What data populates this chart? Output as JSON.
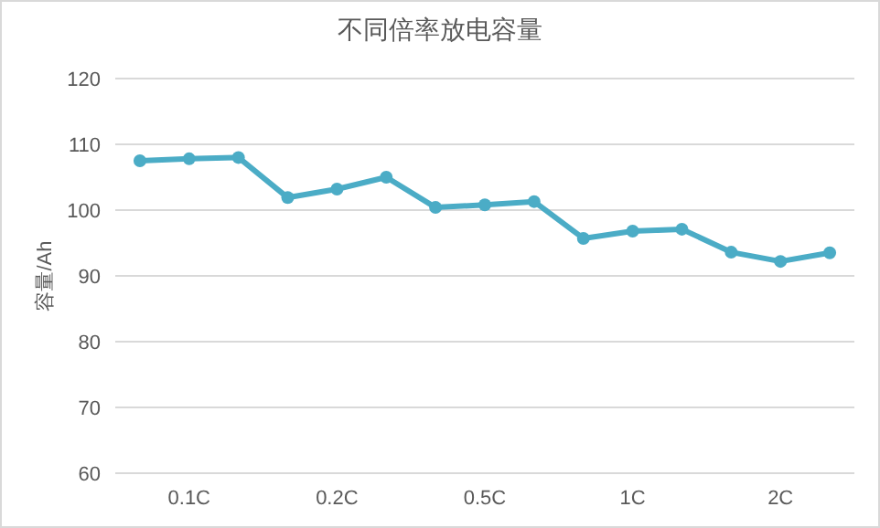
{
  "chart_data": {
    "type": "line",
    "title": "不同倍率放电容量",
    "ylabel": "容量/Ah",
    "categories": [
      null,
      "0.1C",
      null,
      null,
      "0.2C",
      null,
      null,
      "0.5C",
      null,
      null,
      "1C",
      null,
      null,
      "2C",
      null
    ],
    "series": [
      {
        "color": "#4bacc6",
        "values": [
          107.5,
          107.8,
          108.0,
          101.9,
          103.2,
          105.0,
          100.4,
          100.8,
          101.3,
          95.7,
          96.8,
          97.1,
          93.6,
          92.2,
          93.5
        ]
      }
    ],
    "ylim": [
      60,
      120
    ],
    "yticks": [
      60,
      70,
      80,
      90,
      100,
      110,
      120
    ],
    "grid": "y",
    "marker": "circle",
    "line_style": "solid"
  }
}
